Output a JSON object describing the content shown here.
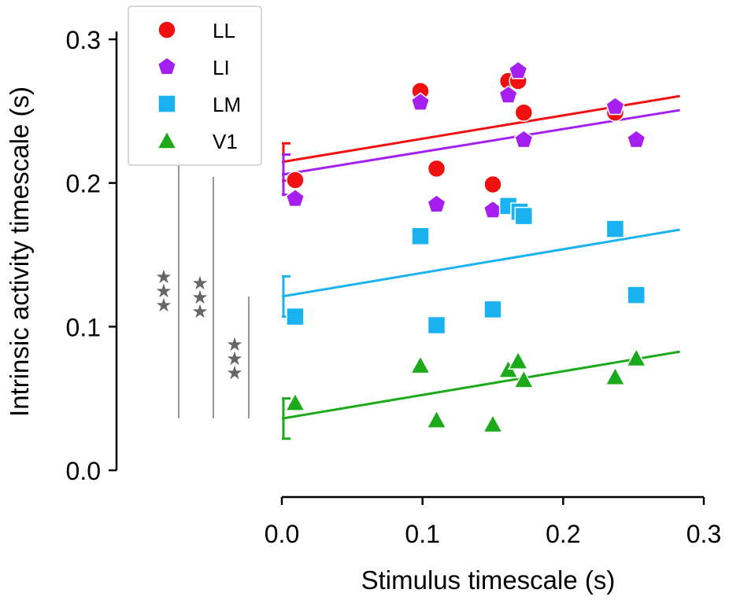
{
  "chart_data": {
    "type": "scatter",
    "x_label": "Stimulus timescale (s)",
    "y_label": "Intrinsic activity timescale (s)",
    "xlim": [
      0,
      0.3
    ],
    "ylim": [
      0,
      0.3
    ],
    "xticks": [
      {
        "value": 0,
        "label": "0.0"
      },
      0.1,
      0.2,
      0.3
    ],
    "yticks": [
      {
        "value": 0,
        "label": "0.0"
      },
      0.1,
      0.2,
      0.3
    ],
    "legend": "upper left",
    "series": [
      {
        "name": "LL",
        "color": "#f01010",
        "marker": "circle",
        "x": [
          0.0095,
          0.0985,
          0.11,
          0.15,
          0.161,
          0.168,
          0.172,
          0.237,
          0.252
        ],
        "values": [
          0.202,
          0.264,
          0.21,
          0.199,
          0.271,
          0.271,
          0.249,
          0.249,
          0.23
        ],
        "fit": {
          "x": [
            0,
            0.283
          ],
          "y": [
            0.2146,
            0.2605
          ]
        },
        "intercept": 0.2146,
        "intercept_err": 0.013
      },
      {
        "name": "LI",
        "color": "#a520f0",
        "marker": "pentagon",
        "x": [
          0.0095,
          0.0985,
          0.11,
          0.15,
          0.161,
          0.168,
          0.172,
          0.237,
          0.252
        ],
        "values": [
          0.189,
          0.256,
          0.185,
          0.181,
          0.261,
          0.278,
          0.23,
          0.253,
          0.23
        ],
        "fit": {
          "x": [
            0,
            0.283
          ],
          "y": [
            0.2058,
            0.2507
          ]
        },
        "intercept": 0.2058,
        "intercept_err": 0.014
      },
      {
        "name": "LM",
        "color": "#1ab2f0",
        "marker": "square",
        "x": [
          0.0095,
          0.0985,
          0.11,
          0.15,
          0.161,
          0.169,
          0.172,
          0.237,
          0.252
        ],
        "values": [
          0.107,
          0.163,
          0.101,
          0.112,
          0.184,
          0.18,
          0.177,
          0.168,
          0.122
        ],
        "fit": {
          "x": [
            0,
            0.283
          ],
          "y": [
            0.121,
            0.1675
          ]
        },
        "intercept": 0.121,
        "intercept_err": 0.014
      },
      {
        "name": "V1",
        "color": "#1aaa1a",
        "marker": "triangle",
        "x": [
          0.0095,
          0.0985,
          0.11,
          0.15,
          0.161,
          0.168,
          0.172,
          0.237,
          0.252
        ],
        "values": [
          0.047,
          0.073,
          0.035,
          0.032,
          0.07,
          0.076,
          0.063,
          0.065,
          0.078
        ],
        "fit": {
          "x": [
            0,
            0.283
          ],
          "y": [
            0.036,
            0.0826
          ]
        },
        "intercept": 0.036,
        "intercept_err": 0.014
      }
    ]
  }
}
